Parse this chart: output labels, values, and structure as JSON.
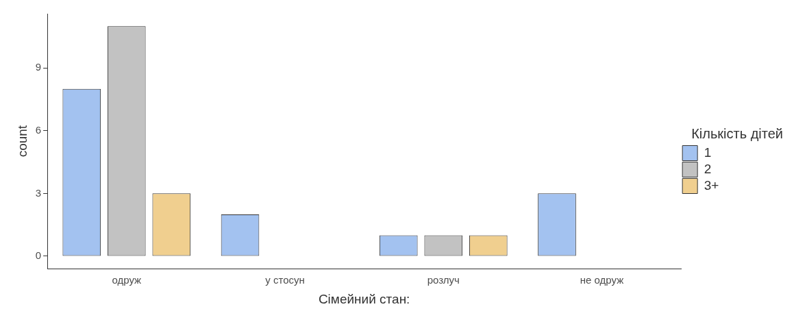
{
  "chart_data": {
    "type": "bar",
    "xlabel": "Сімейний стан:",
    "ylabel": "count",
    "legend_title": "Кількість дітей",
    "legend": "right",
    "grid": false,
    "categories": [
      "одруж",
      "у стосун",
      "розлуч",
      "не одруж"
    ],
    "series": [
      {
        "name": "1",
        "color": "#a3c2f0",
        "values": [
          8,
          2,
          1,
          3
        ]
      },
      {
        "name": "2",
        "color": "#c2c2c2",
        "values": [
          11,
          0,
          1,
          0
        ]
      },
      {
        "name": "3+",
        "color": "#f0cf8f",
        "values": [
          3,
          0,
          1,
          0
        ]
      }
    ],
    "ylim": [
      -0.6,
      11.6
    ],
    "yticks": [
      0,
      3,
      6,
      9
    ]
  }
}
